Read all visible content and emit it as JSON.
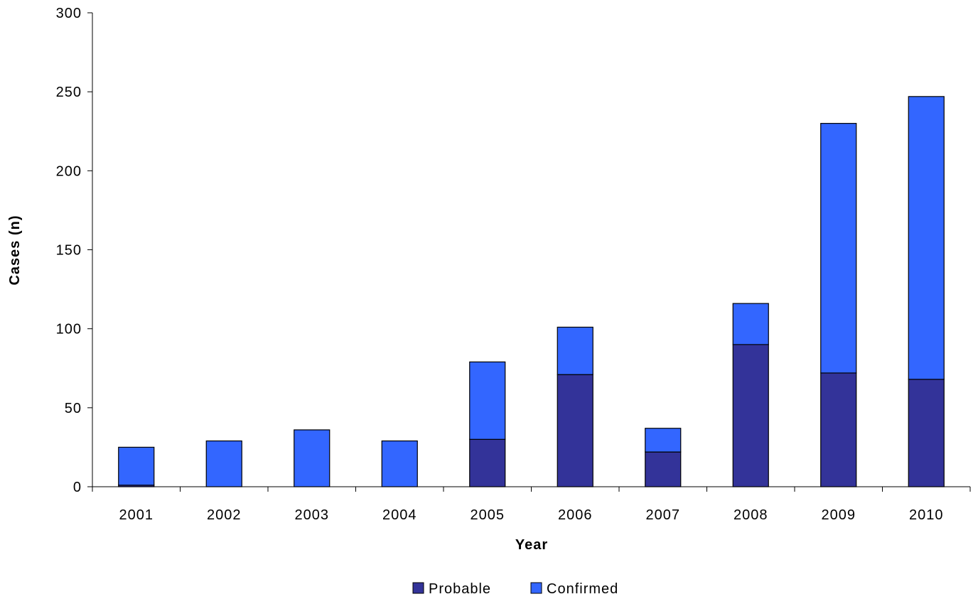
{
  "chart_data": {
    "type": "bar",
    "stacked": true,
    "title": "",
    "xlabel": "Year",
    "ylabel": "Cases (n)",
    "categories": [
      "2001",
      "2002",
      "2003",
      "2004",
      "2005",
      "2006",
      "2007",
      "2008",
      "2009",
      "2010"
    ],
    "series": [
      {
        "name": "Probable",
        "color": "#333399",
        "values": [
          1,
          0,
          0,
          0,
          30,
          71,
          22,
          90,
          72,
          68
        ]
      },
      {
        "name": "Confirmed",
        "color": "#3366FF",
        "values": [
          24,
          29,
          36,
          29,
          49,
          30,
          15,
          26,
          158,
          179
        ]
      }
    ],
    "ylim": [
      0,
      300
    ],
    "yticks": [
      0,
      50,
      100,
      150,
      200,
      250,
      300
    ],
    "grid": false,
    "legend_position": "bottom"
  }
}
